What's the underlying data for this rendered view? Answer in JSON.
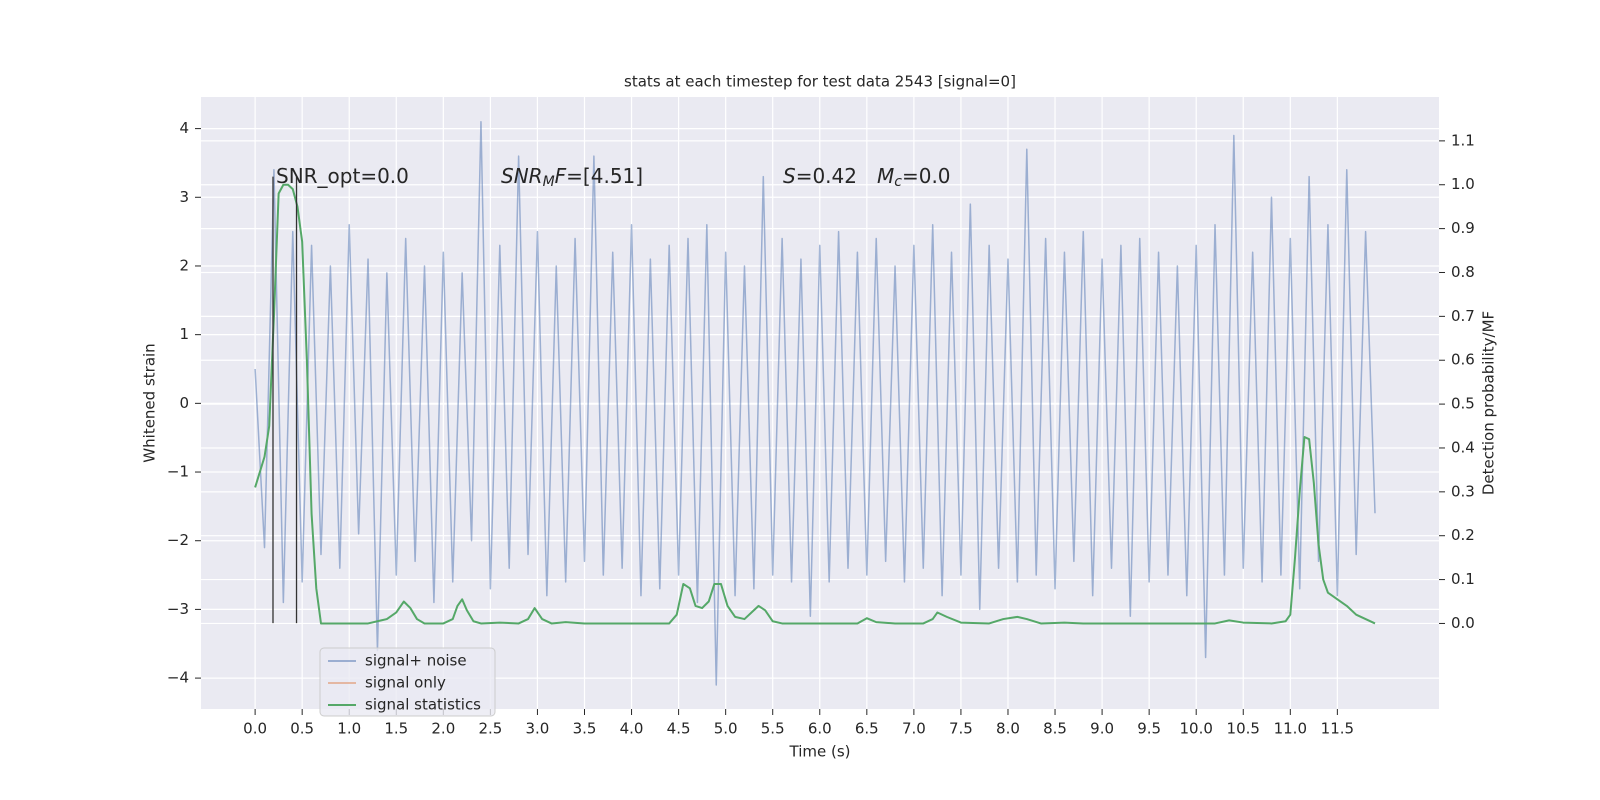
{
  "chart_data": {
    "type": "line",
    "title": "stats at each timestep for test data 2543 [signal=0]",
    "xlabel": "Time (s)",
    "ylabel": "Whitened strain",
    "y2label": "Detection probability/MF",
    "background": "#eaeaf2",
    "grid": true,
    "xlim": [
      -0.575,
      12.58
    ],
    "ylim": [
      -4.45,
      4.46
    ],
    "y2lim": [
      -0.195,
      1.2
    ],
    "xticks": [
      {
        "value": 0,
        "label": "0.0"
      },
      {
        "value": 0.5,
        "label": "0.5"
      },
      {
        "value": 1,
        "label": "1.0"
      },
      {
        "value": 1.5,
        "label": "1.5"
      },
      {
        "value": 2,
        "label": "2.0"
      },
      {
        "value": 2.5,
        "label": "2.5"
      },
      {
        "value": 3,
        "label": "3.0"
      },
      {
        "value": 3.5,
        "label": "3.5"
      },
      {
        "value": 4,
        "label": "4.0"
      },
      {
        "value": 4.5,
        "label": "4.5"
      },
      {
        "value": 5,
        "label": "5.0"
      },
      {
        "value": 5.5,
        "label": "5.5"
      },
      {
        "value": 6,
        "label": "6.0"
      },
      {
        "value": 6.5,
        "label": "6.5"
      },
      {
        "value": 7,
        "label": "7.0"
      },
      {
        "value": 7.5,
        "label": "7.5"
      },
      {
        "value": 8,
        "label": "8.0"
      },
      {
        "value": 8.5,
        "label": "8.5"
      },
      {
        "value": 9,
        "label": "9.0"
      },
      {
        "value": 9.5,
        "label": "9.5"
      },
      {
        "value": 10,
        "label": "10.0"
      },
      {
        "value": 10.5,
        "label": "10.5"
      },
      {
        "value": 11,
        "label": "11.0"
      },
      {
        "value": 11.5,
        "label": "11.5"
      }
    ],
    "yticks": [
      {
        "value": -4,
        "label": "−4"
      },
      {
        "value": -3,
        "label": "−3"
      },
      {
        "value": -2,
        "label": "−2"
      },
      {
        "value": -1,
        "label": "−1"
      },
      0,
      1,
      2,
      3,
      4
    ],
    "y2ticks": [
      {
        "value": 0,
        "label": "0.0"
      },
      {
        "value": 0.1,
        "label": "0.1"
      },
      {
        "value": 0.2,
        "label": "0.2"
      },
      {
        "value": 0.3,
        "label": "0.3"
      },
      {
        "value": 0.4,
        "label": "0.4"
      },
      {
        "value": 0.5,
        "label": "0.5"
      },
      {
        "value": 0.6,
        "label": "0.6"
      },
      {
        "value": 0.7,
        "label": "0.7"
      },
      {
        "value": 0.8,
        "label": "0.8"
      },
      {
        "value": 0.9,
        "label": "0.9"
      },
      {
        "value": 1.0,
        "label": "1.0"
      },
      {
        "value": 1.1,
        "label": "1.1"
      }
    ],
    "series": [
      {
        "name": "signal+ noise",
        "color": "#4c72b0",
        "opacity": 0.5,
        "x": [
          0,
          0.1,
          0.2,
          0.3,
          0.4,
          0.5,
          0.6,
          0.7,
          0.8,
          0.9,
          1,
          1.1,
          1.2,
          1.3,
          1.4,
          1.5,
          1.6,
          1.7,
          1.8,
          1.9,
          2,
          2.1,
          2.2,
          2.3,
          2.4,
          2.5,
          2.6,
          2.7,
          2.8,
          2.9,
          3,
          3.1,
          3.2,
          3.3,
          3.4,
          3.5,
          3.6,
          3.7,
          3.8,
          3.9,
          4,
          4.1,
          4.2,
          4.3,
          4.4,
          4.5,
          4.6,
          4.7,
          4.8,
          4.9,
          5,
          5.1,
          5.2,
          5.3,
          5.4,
          5.5,
          5.6,
          5.7,
          5.8,
          5.9,
          6,
          6.1,
          6.2,
          6.3,
          6.4,
          6.5,
          6.6,
          6.7,
          6.8,
          6.9,
          7,
          7.1,
          7.2,
          7.3,
          7.4,
          7.5,
          7.6,
          7.7,
          7.8,
          7.9,
          8,
          8.1,
          8.2,
          8.3,
          8.4,
          8.5,
          8.6,
          8.7,
          8.8,
          8.9,
          9,
          9.1,
          9.2,
          9.3,
          9.4,
          9.5,
          9.6,
          9.7,
          9.8,
          9.9,
          10,
          10.1,
          10.2,
          10.3,
          10.4,
          10.5,
          10.6,
          10.7,
          10.8,
          10.9,
          11,
          11.1,
          11.2,
          11.3,
          11.4,
          11.5,
          11.6,
          11.7,
          11.8,
          11.9
        ],
        "values": [
          0.5,
          -2.1,
          3.4,
          -2.9,
          2.5,
          -2.6,
          2.3,
          -2.2,
          2.0,
          -2.4,
          2.6,
          -1.9,
          2.1,
          -3.6,
          1.9,
          -2.5,
          2.4,
          -2.3,
          2.0,
          -2.9,
          2.2,
          -2.6,
          1.9,
          -2.0,
          4.1,
          -2.7,
          2.3,
          -2.4,
          3.6,
          -2.2,
          2.5,
          -2.8,
          2.0,
          -2.6,
          2.4,
          -2.3,
          3.6,
          -2.5,
          2.2,
          -2.4,
          2.6,
          -2.8,
          2.1,
          -2.7,
          2.3,
          -2.5,
          2.4,
          -2.9,
          2.6,
          -4.1,
          2.2,
          -2.8,
          2.0,
          -2.7,
          3.3,
          -2.5,
          2.4,
          -2.6,
          2.1,
          -3.1,
          2.3,
          -2.6,
          2.5,
          -2.4,
          2.2,
          -2.5,
          2.4,
          -2.3,
          2.0,
          -2.6,
          2.3,
          -2.4,
          2.6,
          -2.8,
          2.2,
          -2.5,
          2.9,
          -3.0,
          2.3,
          -2.4,
          2.1,
          -2.6,
          3.7,
          -2.5,
          2.4,
          -2.7,
          2.2,
          -2.3,
          2.5,
          -2.8,
          2.1,
          -2.4,
          2.3,
          -3.1,
          2.4,
          -2.6,
          2.2,
          -2.5,
          2.0,
          -2.8,
          2.3,
          -3.7,
          2.6,
          -2.5,
          3.9,
          -2.4,
          2.2,
          -2.6,
          3.0,
          -2.5,
          2.4,
          -2.7,
          3.3,
          -2.3,
          2.6,
          -2.8,
          3.4,
          -2.2,
          2.5,
          -1.6
        ]
      },
      {
        "name": "signal only",
        "color": "#dd8452",
        "opacity": 0.5,
        "x": [],
        "values": []
      },
      {
        "name": "signal statistics",
        "color": "#55a868",
        "opacity": 1,
        "axis": "y2",
        "x": [
          0,
          0.1,
          0.15,
          0.2,
          0.25,
          0.3,
          0.35,
          0.4,
          0.45,
          0.5,
          0.55,
          0.6,
          0.65,
          0.7,
          0.8,
          1.0,
          1.2,
          1.4,
          1.5,
          1.58,
          1.65,
          1.72,
          1.8,
          2.0,
          2.1,
          2.15,
          2.2,
          2.25,
          2.32,
          2.4,
          2.6,
          2.8,
          2.9,
          2.97,
          3.05,
          3.15,
          3.3,
          3.5,
          4.0,
          4.4,
          4.48,
          4.55,
          4.62,
          4.68,
          4.75,
          4.82,
          4.88,
          4.95,
          5.02,
          5.1,
          5.2,
          5.3,
          5.35,
          5.42,
          5.5,
          5.6,
          6.4,
          6.5,
          6.6,
          6.8,
          7.1,
          7.2,
          7.25,
          7.35,
          7.5,
          7.8,
          7.95,
          8.1,
          8.2,
          8.35,
          8.6,
          8.8,
          10.2,
          10.35,
          10.5,
          10.8,
          10.95,
          11.0,
          11.05,
          11.1,
          11.15,
          11.2,
          11.25,
          11.3,
          11.35,
          11.4,
          11.5,
          11.6,
          11.7,
          11.8,
          11.9
        ],
        "values": [
          0.31,
          0.38,
          0.45,
          0.7,
          0.98,
          1.0,
          1.0,
          0.99,
          0.95,
          0.87,
          0.6,
          0.25,
          0.08,
          0.0,
          0.0,
          0.0,
          0.0,
          0.01,
          0.025,
          0.05,
          0.035,
          0.01,
          0.0,
          0.0,
          0.01,
          0.04,
          0.055,
          0.03,
          0.005,
          0.0,
          0.002,
          0.0,
          0.01,
          0.035,
          0.01,
          0.0,
          0.003,
          0.0,
          0.0,
          0.0,
          0.02,
          0.09,
          0.08,
          0.04,
          0.035,
          0.05,
          0.09,
          0.09,
          0.04,
          0.015,
          0.01,
          0.03,
          0.04,
          0.03,
          0.005,
          0.0,
          0.0,
          0.012,
          0.003,
          0.0,
          0.0,
          0.01,
          0.025,
          0.015,
          0.002,
          0.0,
          0.01,
          0.015,
          0.01,
          0.0,
          0.002,
          0.0,
          0.0,
          0.007,
          0.002,
          0.0,
          0.005,
          0.02,
          0.15,
          0.3,
          0.425,
          0.42,
          0.32,
          0.18,
          0.1,
          0.07,
          0.055,
          0.04,
          0.02,
          0.01,
          0.0
        ]
      }
    ],
    "vlines": {
      "color": "#333333",
      "x": [
        0.19,
        0.44
      ],
      "ymin": -3.2,
      "ymax": 3.3
    },
    "annotations": [
      {
        "parts": [
          {
            "text": "SNR_opt=0.0"
          }
        ]
      },
      {
        "parts": [
          {
            "text": "SNR",
            "italic": true
          },
          {
            "text": "M",
            "italic": true,
            "sub": true
          },
          {
            "text": "F",
            "italic": true
          },
          {
            "text": "=[4.51]"
          }
        ]
      },
      {
        "parts": [
          {
            "text": "S",
            "italic": true
          },
          {
            "text": "=0.42"
          }
        ]
      },
      {
        "parts": [
          {
            "text": "M",
            "italic": true
          },
          {
            "text": "c",
            "italic": true,
            "sub": true
          },
          {
            "text": "=0.0"
          }
        ]
      }
    ],
    "legend": "lower left"
  }
}
